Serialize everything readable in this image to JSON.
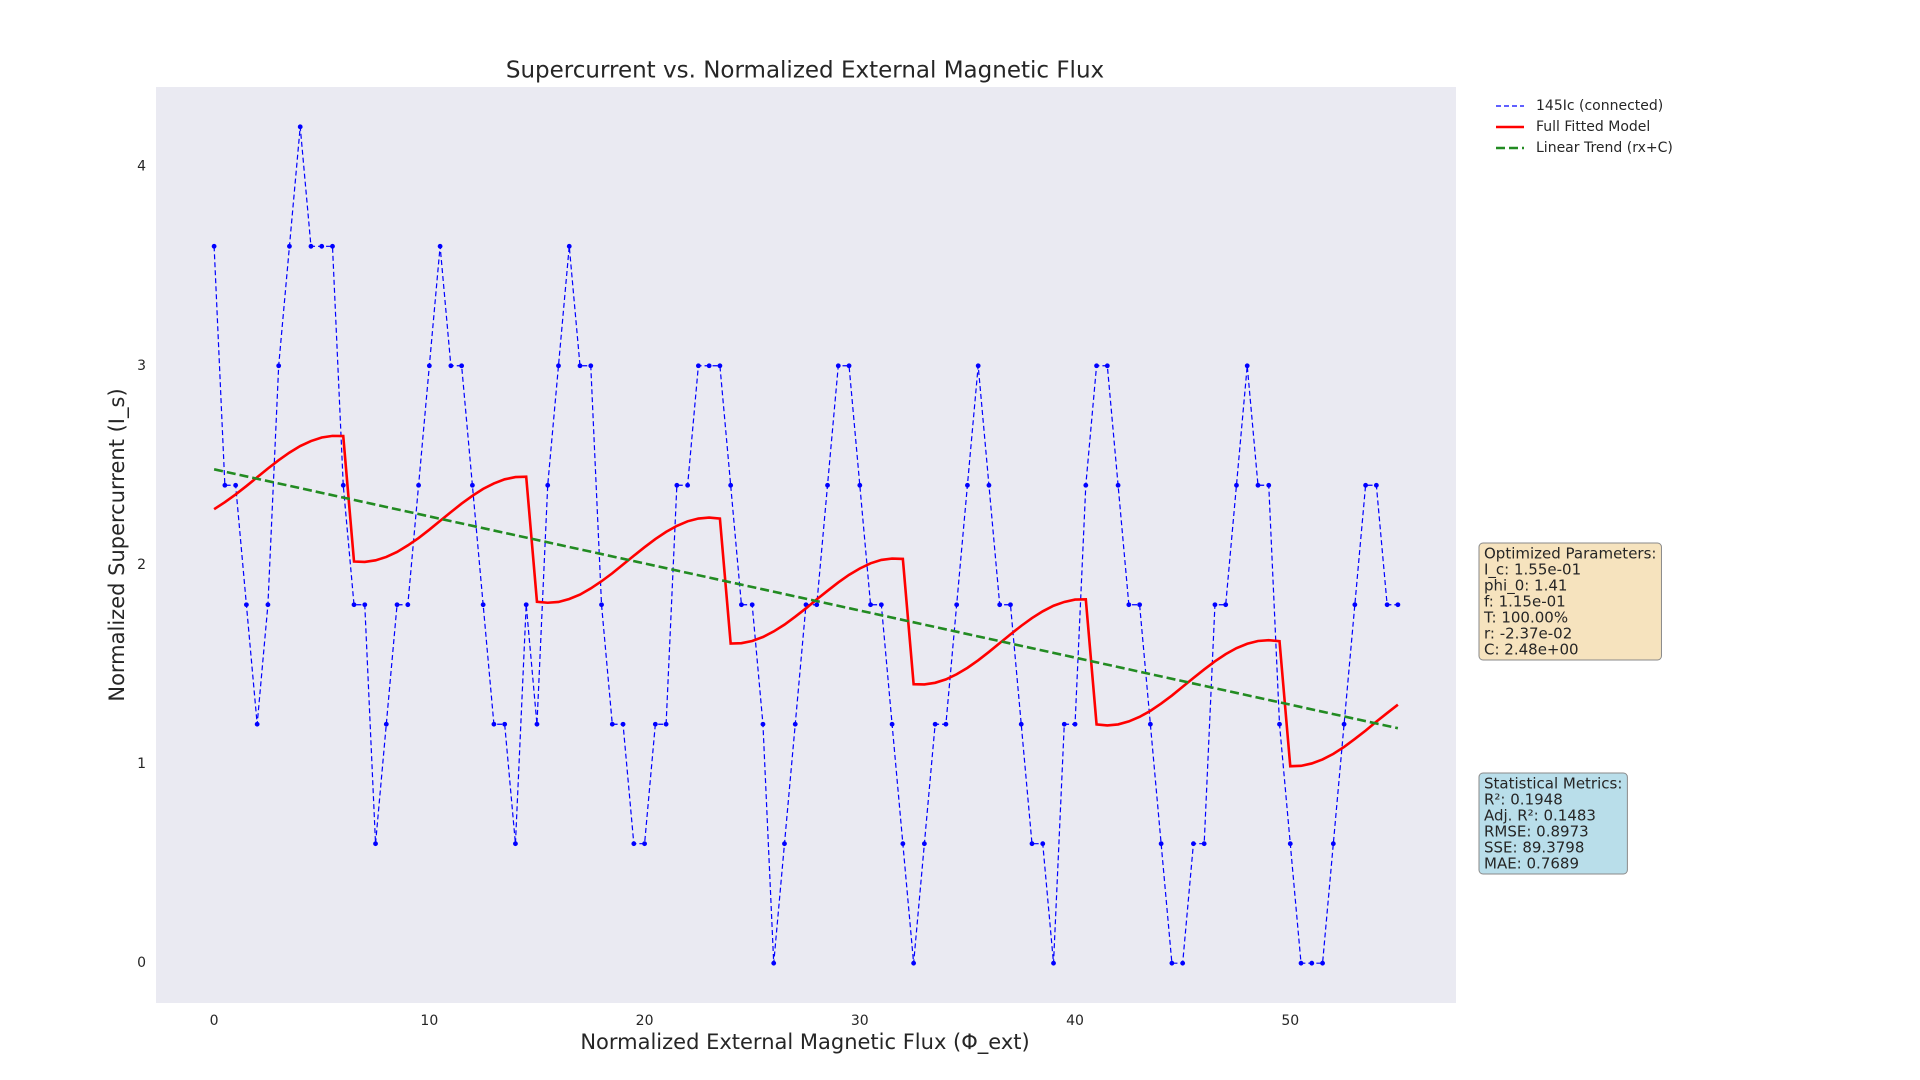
{
  "chart_data": {
    "type": "line",
    "title": "Supercurrent vs. Normalized External Magnetic Flux",
    "x_label": "Normalized External Magnetic Flux (Φ_ext)",
    "y_label": "Normalized Supercurrent (I_s)",
    "xlim": [
      -2.7,
      57.7
    ],
    "ylim": [
      -0.2,
      4.4
    ],
    "xticks": [
      0,
      10,
      20,
      30,
      40,
      50
    ],
    "yticks": [
      0,
      1,
      2,
      3,
      4
    ],
    "grid": false,
    "legend": "outside",
    "x": [
      0,
      0.5,
      1,
      1.5,
      2,
      2.5,
      3,
      3.5,
      4,
      4.5,
      5,
      5.5,
      6,
      6.5,
      7,
      7.5,
      8,
      8.5,
      9,
      9.5,
      10,
      10.5,
      11,
      11.5,
      12,
      12.5,
      13,
      13.5,
      14,
      14.5,
      15,
      15.5,
      16,
      16.5,
      17,
      17.5,
      18,
      18.5,
      19,
      19.5,
      20,
      20.5,
      21,
      21.5,
      22,
      22.5,
      23,
      23.5,
      24,
      24.5,
      25,
      25.5,
      26,
      26.5,
      27,
      27.5,
      28,
      28.5,
      29,
      29.5,
      30,
      30.5,
      31,
      31.5,
      32,
      32.5,
      33,
      33.5,
      34,
      34.5,
      35,
      35.5,
      36,
      36.5,
      37,
      37.5,
      38,
      38.5,
      39,
      39.5,
      40,
      40.5,
      41,
      41.5,
      42,
      42.5,
      43,
      43.5,
      44,
      44.5,
      45,
      45.5,
      46,
      46.5,
      47,
      47.5,
      48,
      48.5,
      49,
      49.5,
      50,
      50.5,
      51,
      51.5,
      52,
      52.5,
      53,
      53.5,
      54,
      54.5,
      55
    ],
    "series": [
      {
        "name": "145Ic (connected)",
        "color": "#0000ff",
        "linestyle": "dashed",
        "marker": "o",
        "values": [
          3.6,
          2.4,
          2.4,
          1.8,
          1.2,
          1.8,
          3.0,
          3.6,
          4.2,
          3.6,
          3.6,
          3.6,
          2.4,
          1.8,
          1.8,
          0.6,
          1.2,
          1.8,
          1.8,
          2.4,
          3.0,
          3.6,
          3.0,
          3.0,
          2.4,
          1.8,
          1.2,
          1.2,
          0.6,
          1.8,
          1.2,
          2.4,
          3.0,
          3.6,
          3.0,
          3.0,
          1.8,
          1.2,
          1.2,
          0.6,
          0.6,
          1.2,
          1.2,
          2.4,
          2.4,
          3.0,
          3.0,
          3.0,
          2.4,
          1.8,
          1.8,
          1.2,
          0,
          0.6,
          1.2,
          1.8,
          1.8,
          2.4,
          3.0,
          3.0,
          2.4,
          1.8,
          1.8,
          1.2,
          0.6,
          0,
          0.6,
          1.2,
          1.2,
          1.8,
          2.4,
          3.0,
          2.4,
          1.8,
          1.8,
          1.2,
          0.6,
          0.6,
          0,
          1.2,
          1.2,
          2.4,
          3.0,
          3.0,
          2.4,
          1.8,
          1.8,
          1.2,
          0.6,
          0,
          0,
          0.6,
          0.6,
          1.8,
          1.8,
          2.4,
          3.0,
          2.4,
          2.4,
          1.2,
          0.6,
          0,
          0,
          0,
          0.6,
          1.2,
          1.8,
          2.4,
          2.4,
          1.8,
          1.8
        ]
      },
      {
        "name": "Full Fitted Model",
        "color": "#ff0000",
        "linestyle": "solid",
        "values": [
          2.28,
          2.315,
          2.354,
          2.396,
          2.44,
          2.484,
          2.526,
          2.564,
          2.597,
          2.622,
          2.64,
          2.648,
          2.647,
          2.017,
          2.015,
          2.023,
          2.04,
          2.065,
          2.098,
          2.135,
          2.177,
          2.221,
          2.265,
          2.308,
          2.347,
          2.382,
          2.409,
          2.43,
          2.441,
          2.443,
          1.815,
          1.81,
          1.814,
          1.829,
          1.851,
          1.882,
          1.918,
          1.958,
          2.002,
          2.046,
          2.089,
          2.13,
          2.166,
          2.196,
          2.219,
          2.233,
          2.238,
          2.233,
          1.605,
          1.607,
          1.618,
          1.638,
          1.666,
          1.7,
          1.74,
          1.782,
          1.827,
          1.87,
          1.912,
          1.95,
          1.982,
          2.008,
          2.025,
          2.032,
          2.03,
          1.401,
          1.4,
          1.408,
          1.425,
          1.451,
          1.483,
          1.521,
          1.563,
          1.607,
          1.651,
          1.694,
          1.733,
          1.767,
          1.795,
          1.814,
          1.826,
          1.827,
          1.199,
          1.194,
          1.199,
          1.214,
          1.237,
          1.267,
          1.304,
          1.344,
          1.388,
          1.432,
          1.475,
          1.516,
          1.552,
          1.582,
          1.604,
          1.618,
          1.622,
          1.617,
          0.989,
          0.991,
          1.003,
          1.023,
          1.051,
          1.086,
          1.126,
          1.168,
          1.213,
          1.256,
          1.298
        ]
      },
      {
        "name": "Linear Trend (rx+C)",
        "color": "#228b22",
        "linestyle": "dashed",
        "x": [
          0,
          55
        ],
        "values": [
          2.48,
          1.18
        ]
      }
    ],
    "annotations": [
      {
        "lines": [
          "Optimized Parameters:",
          "I_c: 1.55e-01",
          "phi_0: 1.41",
          "f: 1.15e-01",
          "T: 100.00%",
          "r: -2.37e-02",
          "C: 2.48e+00"
        ]
      },
      {
        "lines": [
          "Statistical Metrics:",
          "R²: 0.1948",
          "Adj. R²: 0.1483",
          "RMSE: 0.8973",
          "SSE: 89.3798",
          "MAE: 0.7689"
        ]
      }
    ]
  }
}
